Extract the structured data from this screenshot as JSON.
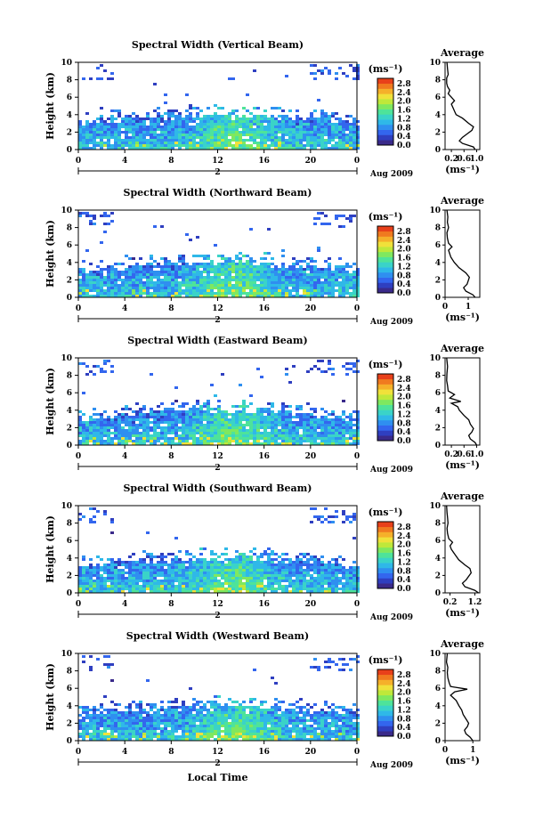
{
  "chart_data": [
    {
      "type": "heatmap",
      "title": "Spectral Width (Vertical Beam)",
      "ylabel": "Height (km)",
      "unit_label": "(ms⁻¹)",
      "date_label": "Aug 2009",
      "day_label": "2",
      "x_ticks": [
        "0",
        "4",
        "8",
        "12",
        "16",
        "20",
        "0"
      ],
      "y_ticks": [
        "0",
        "2",
        "4",
        "6",
        "8",
        "10"
      ],
      "colorbar_ticks": [
        "0.0",
        "0.4",
        "0.8",
        "1.2",
        "1.6",
        "2.0",
        "2.4",
        "2.8"
      ],
      "avg": {
        "title": "Average",
        "xlabel": "(ms⁻¹)",
        "x_ticks": [
          "0.2",
          "0.6",
          "1.0"
        ],
        "x_range": [
          0,
          1.1
        ],
        "y_ticks": [
          "0",
          "2",
          "4",
          "6",
          "8",
          "10"
        ],
        "profile": [
          [
            0.95,
            0
          ],
          [
            0.9,
            0.3
          ],
          [
            0.55,
            0.7
          ],
          [
            0.45,
            1.0
          ],
          [
            0.55,
            1.4
          ],
          [
            0.7,
            1.8
          ],
          [
            0.85,
            2.2
          ],
          [
            0.9,
            2.6
          ],
          [
            0.75,
            3.0
          ],
          [
            0.55,
            3.6
          ],
          [
            0.35,
            4.0
          ],
          [
            0.3,
            4.4
          ],
          [
            0.25,
            4.8
          ],
          [
            0.2,
            5.2
          ],
          [
            0.3,
            5.6
          ],
          [
            0.2,
            6.0
          ],
          [
            0.1,
            6.4
          ],
          [
            0.15,
            6.8
          ],
          [
            0.08,
            7.2
          ],
          [
            0.05,
            7.6
          ],
          [
            0.05,
            8.2
          ],
          [
            0.1,
            8.6
          ],
          [
            0.08,
            9.2
          ],
          [
            0.06,
            10
          ]
        ]
      }
    },
    {
      "type": "heatmap",
      "title": "Spectral Width (Northward Beam)",
      "ylabel": "Height (km)",
      "unit_label": "(ms⁻¹)",
      "date_label": "Aug 2009",
      "day_label": "2",
      "x_ticks": [
        "0",
        "4",
        "8",
        "12",
        "16",
        "20",
        "0"
      ],
      "y_ticks": [
        "0",
        "2",
        "4",
        "6",
        "8",
        "10"
      ],
      "colorbar_ticks": [
        "0.0",
        "0.4",
        "0.8",
        "1.2",
        "1.6",
        "2.0",
        "2.4",
        "2.8"
      ],
      "avg": {
        "title": "Average",
        "xlabel": "(ms⁻¹)",
        "x_ticks": [
          "0",
          "1"
        ],
        "x_range": [
          0,
          1.5
        ],
        "y_ticks": [
          "0",
          "2",
          "4",
          "6",
          "8",
          "10"
        ],
        "profile": [
          [
            1.3,
            0
          ],
          [
            1.2,
            0.3
          ],
          [
            0.9,
            0.7
          ],
          [
            0.8,
            1.1
          ],
          [
            0.95,
            1.5
          ],
          [
            1.0,
            1.9
          ],
          [
            1.05,
            2.3
          ],
          [
            0.9,
            2.8
          ],
          [
            0.6,
            3.4
          ],
          [
            0.4,
            4.0
          ],
          [
            0.25,
            4.6
          ],
          [
            0.2,
            5.0
          ],
          [
            0.15,
            5.4
          ],
          [
            0.3,
            5.8
          ],
          [
            0.15,
            6.2
          ],
          [
            0.1,
            6.8
          ],
          [
            0.08,
            7.4
          ],
          [
            0.15,
            8.0
          ],
          [
            0.1,
            8.6
          ],
          [
            0.12,
            9.2
          ],
          [
            0.08,
            10
          ]
        ]
      }
    },
    {
      "type": "heatmap",
      "title": "Spectral Width (Eastward Beam)",
      "ylabel": "Height (km)",
      "unit_label": "(ms⁻¹)",
      "date_label": "Aug 2009",
      "day_label": "2",
      "x_ticks": [
        "0",
        "4",
        "8",
        "12",
        "16",
        "20",
        "0"
      ],
      "y_ticks": [
        "0",
        "2",
        "4",
        "6",
        "8",
        "10"
      ],
      "colorbar_ticks": [
        "0.0",
        "0.4",
        "0.8",
        "1.2",
        "1.6",
        "2.0",
        "2.4",
        "2.8"
      ],
      "avg": {
        "title": "Average",
        "xlabel": "(ms⁻¹)",
        "x_ticks": [
          "0.2",
          "0.6",
          "1.0"
        ],
        "x_range": [
          0,
          1.1
        ],
        "y_ticks": [
          "0",
          "2",
          "4",
          "6",
          "8",
          "10"
        ],
        "profile": [
          [
            1.0,
            0
          ],
          [
            0.95,
            0.3
          ],
          [
            0.8,
            0.7
          ],
          [
            0.75,
            1.1
          ],
          [
            0.85,
            1.5
          ],
          [
            0.9,
            1.9
          ],
          [
            0.8,
            2.4
          ],
          [
            0.75,
            2.9
          ],
          [
            0.6,
            3.4
          ],
          [
            0.45,
            4.0
          ],
          [
            0.4,
            4.4
          ],
          [
            0.2,
            4.8
          ],
          [
            0.5,
            5.0
          ],
          [
            0.15,
            5.4
          ],
          [
            0.3,
            5.8
          ],
          [
            0.1,
            6.2
          ],
          [
            0.08,
            6.8
          ],
          [
            0.05,
            7.4
          ],
          [
            0.06,
            8.2
          ],
          [
            0.08,
            9.0
          ],
          [
            0.05,
            10
          ]
        ]
      }
    },
    {
      "type": "heatmap",
      "title": "Spectral Width (Southward Beam)",
      "ylabel": "Height (km)",
      "unit_label": "(ms⁻¹)",
      "date_label": "Aug 2009",
      "day_label": "2",
      "x_ticks": [
        "0",
        "4",
        "8",
        "12",
        "16",
        "20",
        "0"
      ],
      "y_ticks": [
        "0",
        "2",
        "4",
        "6",
        "8",
        "10"
      ],
      "colorbar_ticks": [
        "0.0",
        "0.4",
        "0.8",
        "1.2",
        "1.6",
        "2.0",
        "2.4",
        "2.8"
      ],
      "avg": {
        "title": "Average",
        "xlabel": "(ms⁻¹)",
        "x_ticks": [
          "0.2",
          "1.2"
        ],
        "x_range": [
          0,
          1.4
        ],
        "y_ticks": [
          "0",
          "2",
          "4",
          "6",
          "8",
          "10"
        ],
        "profile": [
          [
            1.35,
            0
          ],
          [
            1.2,
            0.3
          ],
          [
            0.8,
            0.7
          ],
          [
            0.7,
            1.1
          ],
          [
            0.85,
            1.5
          ],
          [
            0.95,
            1.9
          ],
          [
            1.05,
            2.3
          ],
          [
            1.0,
            2.8
          ],
          [
            0.8,
            3.2
          ],
          [
            0.55,
            3.8
          ],
          [
            0.4,
            4.4
          ],
          [
            0.25,
            5.0
          ],
          [
            0.2,
            5.4
          ],
          [
            0.3,
            5.8
          ],
          [
            0.15,
            6.2
          ],
          [
            0.1,
            6.8
          ],
          [
            0.08,
            7.4
          ],
          [
            0.12,
            8.0
          ],
          [
            0.1,
            8.6
          ],
          [
            0.08,
            9.2
          ],
          [
            0.06,
            10
          ]
        ]
      }
    },
    {
      "type": "heatmap",
      "title": "Spectral Width (Westward Beam)",
      "ylabel": "Height (km)",
      "unit_label": "(ms⁻¹)",
      "date_label": "Aug 2009",
      "day_label": "2",
      "xlabel": "Local Time",
      "x_ticks": [
        "0",
        "4",
        "8",
        "12",
        "16",
        "20",
        "0"
      ],
      "y_ticks": [
        "0",
        "2",
        "4",
        "6",
        "8",
        "10"
      ],
      "colorbar_ticks": [
        "0.0",
        "0.4",
        "0.8",
        "1.2",
        "1.6",
        "2.0",
        "2.4",
        "2.8"
      ],
      "avg": {
        "title": "Average",
        "xlabel": "(ms⁻¹)",
        "x_ticks": [
          "0",
          "1"
        ],
        "x_range": [
          0,
          1.25
        ],
        "y_ticks": [
          "0",
          "2",
          "4",
          "6",
          "8",
          "10"
        ],
        "profile": [
          [
            1.0,
            0
          ],
          [
            0.9,
            0.4
          ],
          [
            0.75,
            0.8
          ],
          [
            0.7,
            1.2
          ],
          [
            0.8,
            1.6
          ],
          [
            0.85,
            2.0
          ],
          [
            0.75,
            2.5
          ],
          [
            0.65,
            3.0
          ],
          [
            0.6,
            3.5
          ],
          [
            0.5,
            4.0
          ],
          [
            0.4,
            4.6
          ],
          [
            0.2,
            5.2
          ],
          [
            0.35,
            5.6
          ],
          [
            0.8,
            5.9
          ],
          [
            0.2,
            6.2
          ],
          [
            0.15,
            6.6
          ],
          [
            0.1,
            7.2
          ],
          [
            0.08,
            7.8
          ],
          [
            0.1,
            8.4
          ],
          [
            0.05,
            9.0
          ],
          [
            0.08,
            10
          ]
        ]
      }
    }
  ],
  "colors": {
    "colormap": [
      "#3a2a8a",
      "#2f3fc0",
      "#3366ee",
      "#2f8ff0",
      "#2fb8e8",
      "#3ad3c8",
      "#4ee39a",
      "#7fe85f",
      "#bfe83a",
      "#f0e13a",
      "#f5b02a",
      "#f07a1f",
      "#e8401a"
    ],
    "axis": "#000000",
    "profile_line": "#000000"
  }
}
